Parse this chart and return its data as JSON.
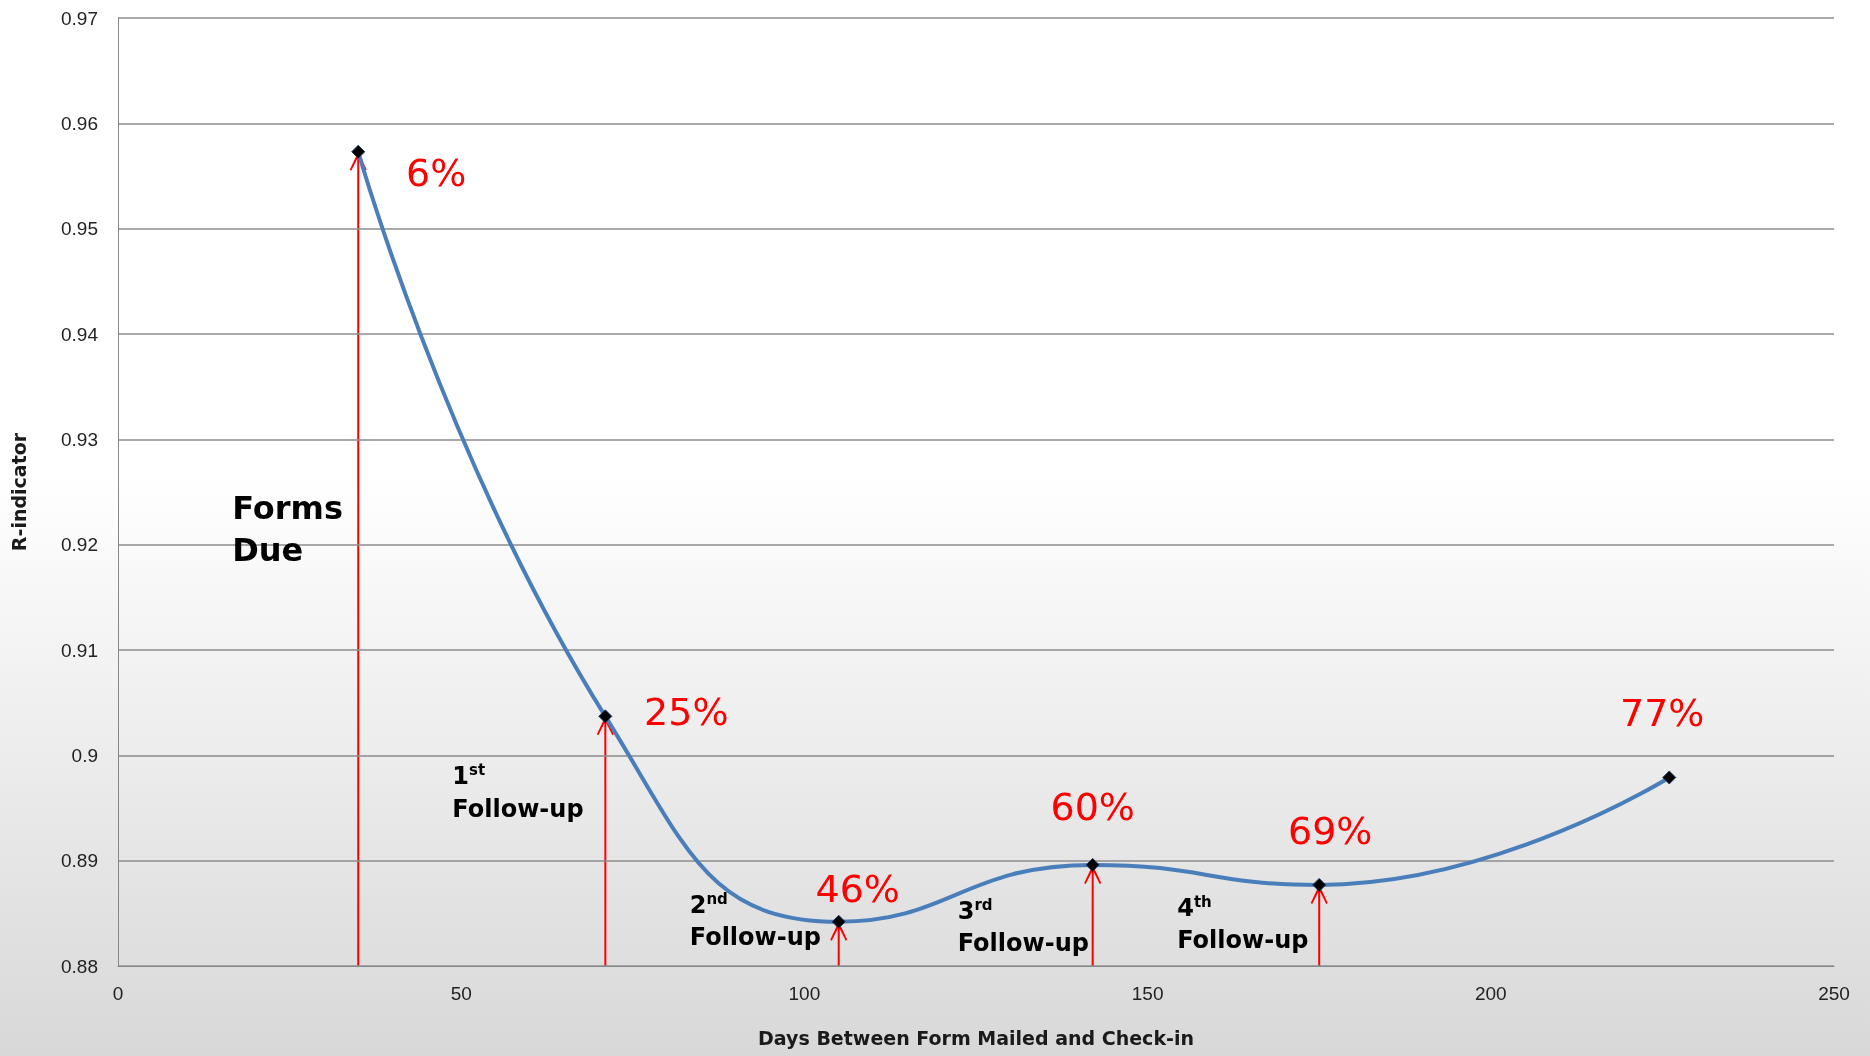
{
  "chart_data": {
    "type": "line",
    "xlabel": "Days Between Form Mailed and Check-in",
    "ylabel": "R-indicator",
    "x": [
      35,
      71,
      105,
      142,
      175,
      226
    ],
    "series": [
      {
        "color": "#4a7ebb",
        "values": [
          0.9573,
          0.9037,
          0.8842,
          0.8896,
          0.8877,
          0.8979
        ]
      }
    ],
    "xlim": [
      0,
      250
    ],
    "xticks": [
      0,
      50,
      100,
      150,
      200,
      250
    ],
    "ylim": [
      0.88,
      0.97
    ],
    "yticks": [
      0.88,
      0.89,
      0.9,
      0.91,
      0.92,
      0.93,
      0.94,
      0.95,
      0.96,
      0.97
    ],
    "grid": "y",
    "marker": "diamond",
    "line_style": "solid",
    "annotations": [
      {
        "text": "6%",
        "x": 35,
        "y": 0.9573
      },
      {
        "text": "25%",
        "x": 71,
        "y": 0.9037
      },
      {
        "text": "46%",
        "x": 105,
        "y": 0.8842
      },
      {
        "text": "60%",
        "x": 142,
        "y": 0.8896
      },
      {
        "text": "69%",
        "x": 175,
        "y": 0.8877
      },
      {
        "text": "77%",
        "x": 226,
        "y": 0.8979
      },
      "Forms\nDue",
      {
        "text": "1$^{st}$\nFollow-up",
        "x": 71,
        "y": 0.9037
      },
      {
        "text": "2$^{nd}$\nFollow-up",
        "x": 105,
        "y": 0.8842
      },
      {
        "text": "3$^{rd}$\nFollow-up",
        "x": 142,
        "y": 0.8896
      },
      {
        "text": "4$^{th}$\nFollow-up",
        "x": 175,
        "y": 0.8877
      }
    ]
  }
}
